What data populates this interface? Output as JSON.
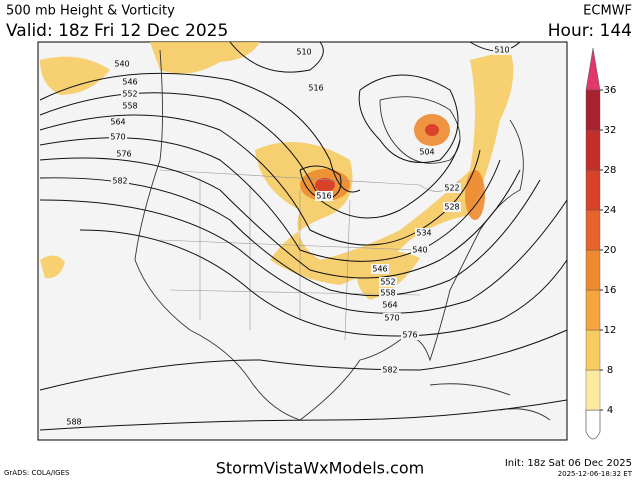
{
  "header": {
    "title": "500 mb Height & Vorticity",
    "valid": "Valid: 18z Fri 12 Dec 2025",
    "model": "ECMWF",
    "hour": "Hour: 144"
  },
  "contour_labels": [
    540,
    546,
    552,
    558,
    564,
    570,
    576,
    582,
    510,
    516,
    510,
    504,
    516,
    522,
    528,
    534,
    540,
    546,
    552,
    558,
    564,
    570,
    576,
    582,
    588
  ],
  "colorbar": {
    "ticks": [
      4,
      8,
      12,
      16,
      20,
      24,
      28,
      32,
      36
    ],
    "colors": [
      "#fde9a0",
      "#f9cc62",
      "#f4a53e",
      "#ee8a2f",
      "#e8622b",
      "#d9422a",
      "#c32e2b",
      "#a8212e",
      "#e3376c"
    ]
  },
  "footer": {
    "site": "StormVistaWxModels.com",
    "init": "Init: 18z Sat 06 Dec 2025",
    "stamp": "2025-12-06-18:32 ET",
    "credit": "GrADS: COLA/IGES"
  }
}
